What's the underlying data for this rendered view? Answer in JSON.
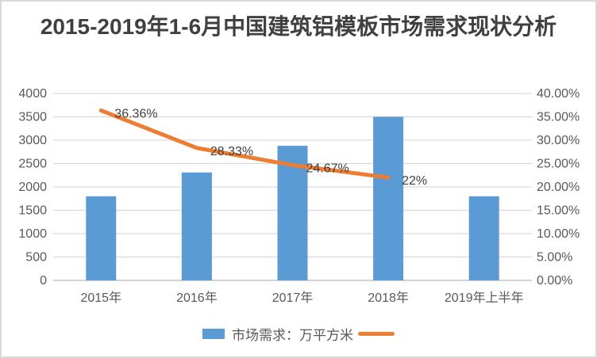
{
  "chart_data": {
    "type": "combo",
    "title": "2015-2019年1-6月中国建筑铝模板市场需求现状分析",
    "categories": [
      "2015年",
      "2016年",
      "2017年",
      "2018年",
      "2019年上半年"
    ],
    "series": [
      {
        "name": "市场需求：万平方米",
        "type": "bar",
        "axis": "left",
        "color": "#5b9bd5",
        "values": [
          1800,
          2310,
          2880,
          3500,
          1800
        ]
      },
      {
        "name": "",
        "type": "line",
        "axis": "right",
        "color": "#ed7d31",
        "values": [
          36.36,
          28.33,
          24.67,
          22,
          null
        ],
        "labels": [
          "36.36%",
          "28.33%",
          "24.67%",
          "22%"
        ]
      }
    ],
    "xlabel": "",
    "ylabel": "",
    "left_axis": {
      "min": 0,
      "max": 4000,
      "step": 500,
      "ticks": [
        "0",
        "500",
        "1000",
        "1500",
        "2000",
        "2500",
        "3000",
        "3500",
        "4000"
      ]
    },
    "right_axis": {
      "min": 0,
      "max": 40,
      "step": 5,
      "ticks": [
        "0.00%",
        "5.00%",
        "10.00%",
        "15.00%",
        "20.00%",
        "25.00%",
        "30.00%",
        "35.00%",
        "40.00%"
      ]
    },
    "grid": true,
    "legend_position": "bottom"
  },
  "legend": {
    "items": [
      {
        "label": "市场需求：万平方米",
        "swatch": "bar",
        "color": "#5b9bd5"
      },
      {
        "label": "",
        "swatch": "line",
        "color": "#ed7d31"
      }
    ]
  },
  "colors": {
    "bar": "#5b9bd5",
    "line": "#ed7d31",
    "grid": "#d9d9d9",
    "axis_line": "#d3d3d3",
    "axis_text": "#595959",
    "label_text": "#404040",
    "title_text": "#404040",
    "border": "#d9d9d9",
    "background": "#ffffff"
  }
}
